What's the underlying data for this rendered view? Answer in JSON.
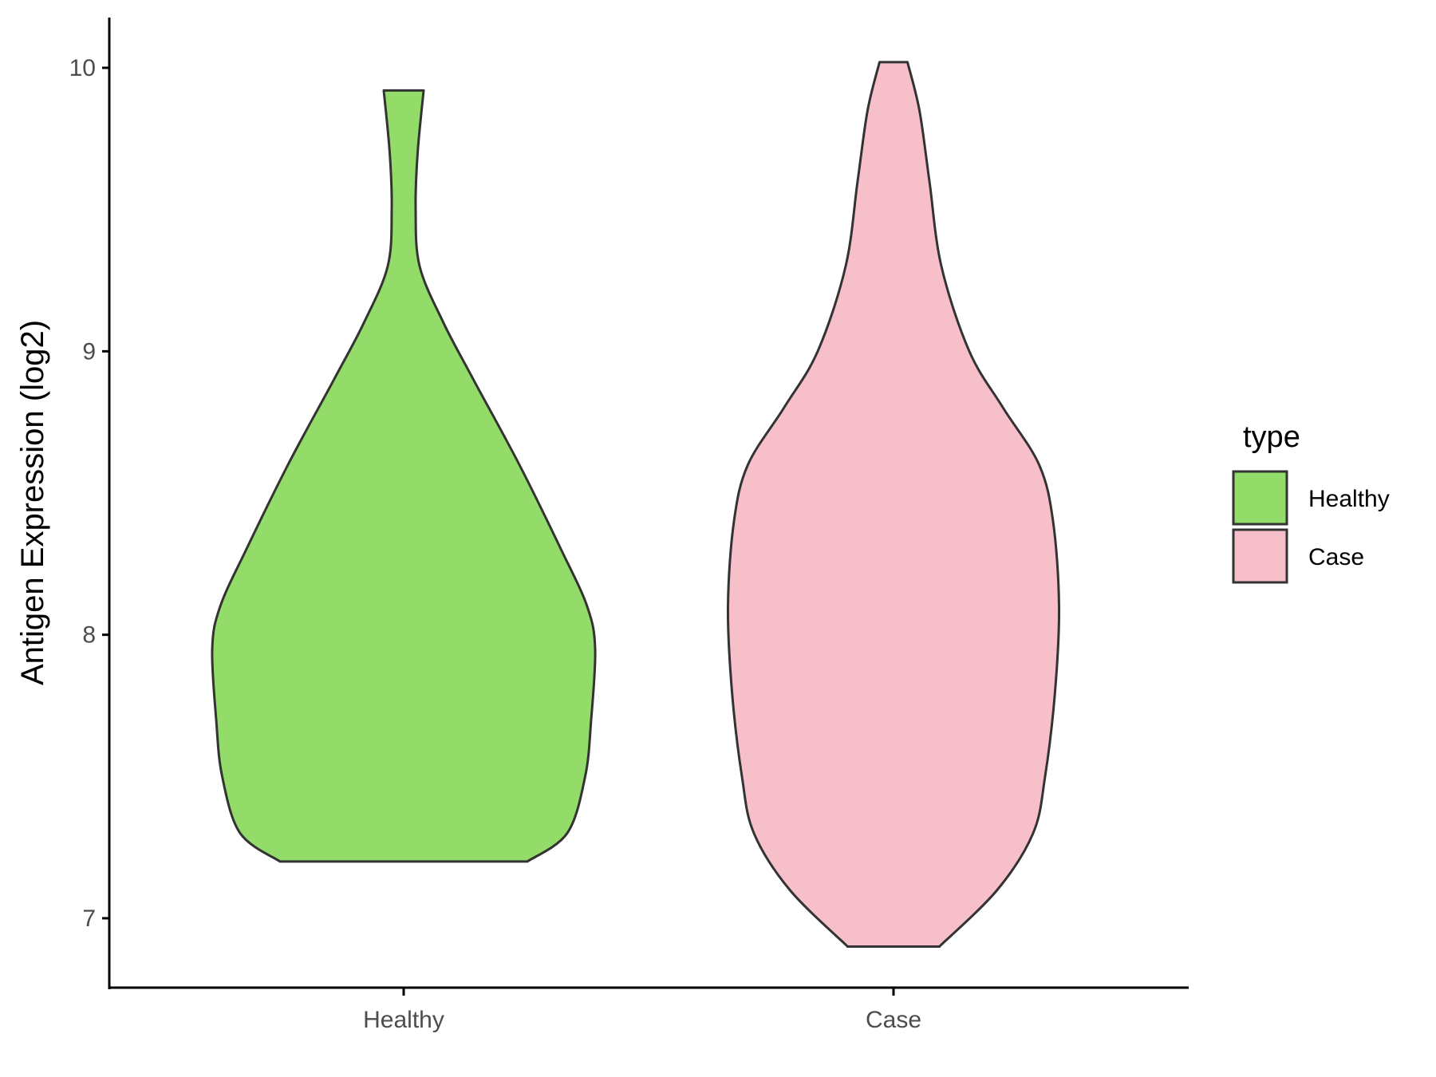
{
  "chart_data": {
    "type": "violin",
    "title": "",
    "xlabel": "",
    "ylabel": "Antigen Expression (log2)",
    "ylim": [
      6.75,
      10.18
    ],
    "y_ticks": [
      7,
      8,
      9,
      10
    ],
    "y_tick_labels": [
      "7",
      "8",
      "9",
      "10"
    ],
    "categories": [
      "Healthy",
      "Case"
    ],
    "grid": false,
    "legend": {
      "title": "type",
      "position": "right"
    },
    "series": [
      {
        "name": "Healthy",
        "color": "#93dc6a",
        "min": 7.2,
        "max": 9.92,
        "density_profile": [
          [
            7.2,
            0.62
          ],
          [
            7.3,
            0.82
          ],
          [
            7.5,
            0.91
          ],
          [
            7.7,
            0.94
          ],
          [
            7.95,
            0.96
          ],
          [
            8.1,
            0.92
          ],
          [
            8.3,
            0.79
          ],
          [
            8.6,
            0.58
          ],
          [
            8.9,
            0.35
          ],
          [
            9.1,
            0.2
          ],
          [
            9.3,
            0.08
          ],
          [
            9.5,
            0.06
          ],
          [
            9.7,
            0.07
          ],
          [
            9.92,
            0.1
          ]
        ]
      },
      {
        "name": "Case",
        "color": "#f7bfca",
        "min": 6.9,
        "max": 10.02,
        "density_profile": [
          [
            6.9,
            0.23
          ],
          [
            7.1,
            0.52
          ],
          [
            7.3,
            0.7
          ],
          [
            7.5,
            0.76
          ],
          [
            7.8,
            0.81
          ],
          [
            8.1,
            0.83
          ],
          [
            8.4,
            0.8
          ],
          [
            8.6,
            0.73
          ],
          [
            8.8,
            0.55
          ],
          [
            9.0,
            0.38
          ],
          [
            9.3,
            0.24
          ],
          [
            9.6,
            0.18
          ],
          [
            9.85,
            0.13
          ],
          [
            10.02,
            0.07
          ]
        ]
      }
    ]
  }
}
